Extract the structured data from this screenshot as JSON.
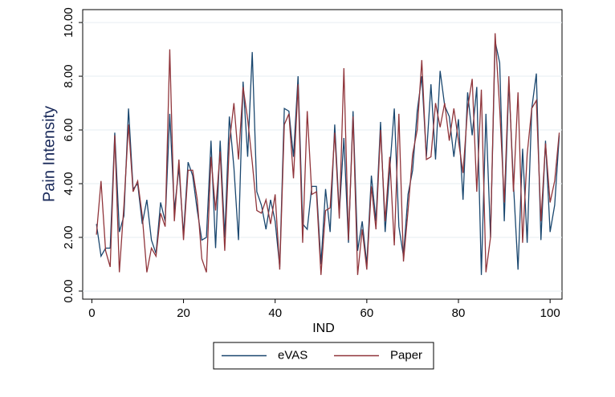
{
  "chart_data": {
    "type": "line",
    "y_label": "Pain Intensity",
    "x_label": "IND",
    "x": [
      1,
      2,
      3,
      4,
      5,
      6,
      7,
      8,
      9,
      10,
      11,
      12,
      13,
      14,
      15,
      16,
      17,
      18,
      19,
      20,
      21,
      22,
      23,
      24,
      25,
      26,
      27,
      28,
      29,
      30,
      31,
      32,
      33,
      34,
      35,
      36,
      37,
      38,
      39,
      40,
      41,
      42,
      43,
      44,
      45,
      46,
      47,
      48,
      49,
      50,
      51,
      52,
      53,
      54,
      55,
      56,
      57,
      58,
      59,
      60,
      61,
      62,
      63,
      64,
      65,
      66,
      67,
      68,
      69,
      70,
      71,
      72,
      73,
      74,
      75,
      76,
      77,
      78,
      79,
      80,
      81,
      82,
      83,
      84,
      85,
      86,
      87,
      88,
      89,
      90,
      91,
      92,
      93,
      94,
      95,
      96,
      97,
      98,
      99,
      100,
      101,
      102
    ],
    "series": [
      {
        "name": "eVAS",
        "color": "#1a476f",
        "values": [
          2.5,
          1.3,
          1.6,
          1.6,
          5.9,
          2.2,
          2.8,
          6.8,
          3.8,
          4.0,
          2.5,
          3.4,
          1.9,
          1.4,
          3.3,
          2.6,
          6.6,
          3.0,
          4.6,
          2.1,
          4.8,
          4.3,
          3.0,
          1.9,
          2.0,
          5.6,
          1.6,
          5.6,
          2.0,
          6.5,
          4.6,
          1.9,
          7.8,
          5.0,
          8.9,
          3.7,
          3.2,
          2.3,
          3.4,
          2.6,
          0.9,
          6.8,
          6.7,
          5.0,
          8.0,
          2.5,
          2.3,
          3.9,
          3.9,
          1.0,
          3.8,
          2.2,
          6.2,
          2.9,
          5.7,
          1.8,
          6.7,
          1.5,
          2.6,
          1.0,
          4.3,
          2.6,
          6.3,
          2.2,
          4.5,
          6.8,
          2.4,
          1.3,
          3.6,
          4.5,
          6.7,
          8.0,
          5.0,
          7.7,
          4.9,
          8.2,
          6.9,
          6.5,
          5.0,
          6.4,
          3.4,
          7.4,
          5.8,
          7.6,
          0.6,
          6.6,
          2.0,
          9.3,
          8.5,
          2.6,
          7.8,
          4.0,
          0.8,
          5.3,
          1.8,
          6.8,
          8.1,
          1.9,
          5.6,
          2.2,
          3.2,
          5.8
        ]
      },
      {
        "name": "Paper",
        "color": "#90353b",
        "values": [
          2.1,
          4.1,
          1.5,
          0.9,
          5.8,
          0.7,
          3.2,
          6.2,
          3.7,
          4.1,
          2.8,
          0.7,
          1.6,
          1.3,
          2.9,
          2.4,
          9.0,
          2.6,
          4.9,
          1.9,
          4.5,
          4.5,
          3.4,
          1.2,
          0.7,
          5.0,
          3.0,
          5.2,
          1.5,
          5.5,
          7.0,
          4.9,
          7.6,
          6.4,
          4.8,
          3.0,
          2.9,
          3.4,
          2.5,
          3.6,
          0.8,
          6.2,
          6.6,
          4.2,
          7.7,
          1.8,
          6.7,
          3.6,
          3.7,
          0.6,
          3.0,
          3.1,
          5.9,
          2.7,
          8.3,
          1.9,
          6.5,
          0.6,
          2.3,
          0.8,
          3.9,
          2.3,
          6.0,
          2.6,
          5.0,
          1.7,
          6.6,
          1.1,
          3.0,
          5.1,
          6.0,
          8.6,
          4.9,
          5.0,
          7.0,
          6.1,
          7.0,
          5.6,
          6.8,
          5.6,
          4.4,
          6.8,
          7.9,
          3.7,
          7.5,
          0.7,
          2.0,
          9.6,
          6.8,
          3.3,
          8.0,
          3.7,
          7.4,
          1.8,
          5.1,
          6.8,
          7.1,
          2.6,
          5.5,
          3.3,
          4.1,
          5.9
        ]
      }
    ],
    "xlim": [
      -2,
      102.6
    ],
    "xticks": [
      0,
      20,
      40,
      60,
      80,
      100
    ],
    "ylim": [
      -0.3,
      10.48
    ],
    "yticks": [
      {
        "value": 0,
        "label": "0.00"
      },
      {
        "value": 2,
        "label": "2.00"
      },
      {
        "value": 4,
        "label": "4.00"
      },
      {
        "value": 6,
        "label": "6.00"
      },
      {
        "value": 8,
        "label": "8.00"
      },
      {
        "value": 10,
        "label": "10.00"
      }
    ],
    "grid": true,
    "legend": "bottom"
  }
}
